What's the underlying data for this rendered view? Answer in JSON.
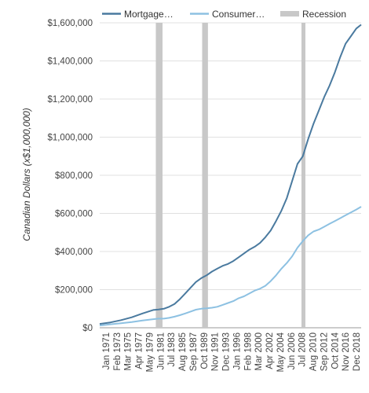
{
  "chart_data": {
    "type": "line",
    "title": "",
    "xlabel": "",
    "ylabel": "Canadian Dollars (x$1,000,000)",
    "ylim": [
      0,
      1600000
    ],
    "y_ticks": [
      0,
      200000,
      400000,
      600000,
      800000,
      1000000,
      1200000,
      1400000,
      1600000
    ],
    "y_tick_labels": [
      "$0",
      "$200,000",
      "$400,000",
      "$600,000",
      "$800,000",
      "$1,000,000",
      "$1,200,000",
      "$1,400,000",
      "$1,600,000"
    ],
    "x_tick_labels": [
      "Jan 1971",
      "Feb 1973",
      "Mar 1975",
      "Apr 1977",
      "May 1979",
      "Jun 1981",
      "Jul 1983",
      "Aug 1985",
      "Sep 1987",
      "Oct 1989",
      "Nov 1991",
      "Dec 1993",
      "Jan 1996",
      "Feb 1998",
      "Mar 2000",
      "Apr 2002",
      "May 2004",
      "Jun 2006",
      "Jul 2008",
      "Aug 2010",
      "Sep 2012",
      "Oct 2014",
      "Nov 2016",
      "Dec 2018"
    ],
    "xlim": [
      "1971-01",
      "2019-12"
    ],
    "grid": true,
    "legend_position": "top",
    "legend": [
      {
        "label": "Mortgage…",
        "kind": "line",
        "color": "#4a7a9f"
      },
      {
        "label": "Consumer…",
        "kind": "line",
        "color": "#8dc1e2"
      },
      {
        "label": "Recession",
        "kind": "band",
        "color": "#c8c8c8"
      }
    ],
    "recessions": [
      {
        "start": "1981-07",
        "end": "1982-10"
      },
      {
        "start": "1990-03",
        "end": "1991-04"
      },
      {
        "start": "2008-10",
        "end": "2009-05"
      }
    ],
    "series": [
      {
        "name": "Mortgage…",
        "color": "#4a7a9f",
        "x": [
          "1971-01",
          "1973-01",
          "1975-01",
          "1977-01",
          "1979-01",
          "1981-01",
          "1982-01",
          "1983-01",
          "1984-01",
          "1985-01",
          "1986-01",
          "1987-01",
          "1988-01",
          "1989-01",
          "1990-01",
          "1991-01",
          "1992-01",
          "1993-01",
          "1994-01",
          "1995-01",
          "1996-01",
          "1997-01",
          "1998-01",
          "1999-01",
          "2000-01",
          "2001-01",
          "2002-01",
          "2003-01",
          "2004-01",
          "2005-01",
          "2006-01",
          "2007-01",
          "2008-01",
          "2009-01",
          "2010-01",
          "2011-01",
          "2012-01",
          "2013-01",
          "2014-01",
          "2015-01",
          "2016-01",
          "2017-01",
          "2018-01",
          "2019-01",
          "2019-12"
        ],
        "values": [
          20000,
          28000,
          40000,
          55000,
          75000,
          93000,
          96000,
          100000,
          110000,
          125000,
          150000,
          180000,
          210000,
          240000,
          260000,
          275000,
          295000,
          310000,
          325000,
          335000,
          350000,
          370000,
          390000,
          410000,
          425000,
          445000,
          475000,
          510000,
          560000,
          615000,
          680000,
          770000,
          860000,
          900000,
          990000,
          1070000,
          1140000,
          1210000,
          1270000,
          1340000,
          1420000,
          1490000,
          1530000,
          1570000,
          1590000
        ]
      },
      {
        "name": "Consumer…",
        "color": "#8dc1e2",
        "x": [
          "1971-01",
          "1973-01",
          "1975-01",
          "1977-01",
          "1979-01",
          "1981-01",
          "1982-01",
          "1983-01",
          "1984-01",
          "1985-01",
          "1986-01",
          "1987-01",
          "1988-01",
          "1989-01",
          "1990-01",
          "1991-01",
          "1992-01",
          "1993-01",
          "1994-01",
          "1995-01",
          "1996-01",
          "1997-01",
          "1998-01",
          "1999-01",
          "2000-01",
          "2001-01",
          "2002-01",
          "2003-01",
          "2004-01",
          "2005-01",
          "2006-01",
          "2007-01",
          "2008-01",
          "2009-01",
          "2010-01",
          "2011-01",
          "2012-01",
          "2013-01",
          "2014-01",
          "2015-01",
          "2016-01",
          "2017-01",
          "2018-01",
          "2019-01",
          "2019-12"
        ],
        "values": [
          12000,
          18000,
          24000,
          30000,
          38000,
          45000,
          48000,
          48000,
          52000,
          58000,
          66000,
          75000,
          85000,
          95000,
          100000,
          102000,
          105000,
          110000,
          120000,
          130000,
          140000,
          155000,
          165000,
          180000,
          195000,
          205000,
          220000,
          245000,
          275000,
          310000,
          340000,
          375000,
          420000,
          455000,
          485000,
          505000,
          515000,
          530000,
          545000,
          560000,
          575000,
          590000,
          605000,
          620000,
          635000
        ]
      }
    ]
  }
}
